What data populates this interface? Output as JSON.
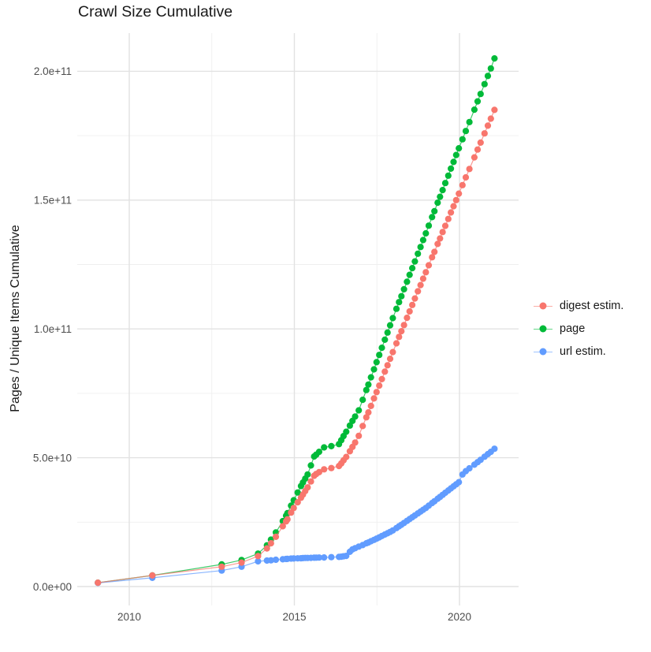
{
  "chart_data": {
    "type": "scatter",
    "title": "Crawl Size Cumulative",
    "xlabel": "",
    "ylabel": "Pages / Unique Items Cumulative",
    "x_unit": "calendar year (decimal)",
    "value_unit": "cumulative count, stored in billions (multiply by 1e9)",
    "xlim": [
      2008.5,
      2021.8
    ],
    "ylim_e9": [
      0,
      214
    ],
    "grid": "white background, light-gray major and minor gridlines, no axis lines",
    "legend_position": "right-center",
    "x_major_ticks": [
      {
        "value": 2010,
        "label": "2010"
      },
      {
        "value": 2015,
        "label": "2015"
      },
      {
        "value": 2020,
        "label": "2020"
      }
    ],
    "x_minor_ticks": [
      2012.5,
      2017.5
    ],
    "y_major_ticks": [
      {
        "value_e9": 0,
        "label": "0.0e+00"
      },
      {
        "value_e9": 50,
        "label": "5.0e+10"
      },
      {
        "value_e9": 100,
        "label": "1.0e+11"
      },
      {
        "value_e9": 150,
        "label": "1.5e+11"
      },
      {
        "value_e9": 200,
        "label": "2.0e+11"
      }
    ],
    "y_minor_ticks_e9": [
      25,
      75,
      125,
      175
    ],
    "x": [
      2009.05,
      2010.7,
      2012.8,
      2013.4,
      2013.9,
      2014.17,
      2014.29,
      2014.44,
      2014.65,
      2014.75,
      2014.79,
      2014.9,
      2014.98,
      2015.1,
      2015.2,
      2015.26,
      2015.33,
      2015.4,
      2015.5,
      2015.6,
      2015.66,
      2015.75,
      2015.9,
      2016.12,
      2016.35,
      2016.42,
      2016.49,
      2016.57,
      2016.68,
      2016.76,
      2016.84,
      2016.95,
      2017.07,
      2017.18,
      2017.24,
      2017.32,
      2017.41,
      2017.49,
      2017.57,
      2017.65,
      2017.74,
      2017.82,
      2017.9,
      2017.98,
      2018.09,
      2018.17,
      2018.24,
      2018.32,
      2018.41,
      2018.49,
      2018.57,
      2018.65,
      2018.74,
      2018.82,
      2018.9,
      2018.98,
      2019.07,
      2019.17,
      2019.24,
      2019.34,
      2019.41,
      2019.49,
      2019.57,
      2019.66,
      2019.74,
      2019.82,
      2019.9,
      2019.98,
      2020.09,
      2020.19,
      2020.3,
      2020.45,
      2020.55,
      2020.64,
      2020.76,
      2020.86,
      2020.95,
      2021.06
    ],
    "series": [
      {
        "name": "digest estim.",
        "color": "#F8766D",
        "values_e9": [
          1.5,
          4.3,
          7.7,
          9.3,
          11.8,
          14.8,
          16.8,
          19.3,
          23.4,
          25.3,
          26.1,
          28.7,
          30.5,
          32.7,
          34.5,
          35.7,
          37.1,
          38.5,
          40.8,
          43.0,
          43.7,
          44.4,
          45.5,
          46.0,
          46.8,
          47.8,
          49.0,
          50.3,
          52.5,
          54.2,
          55.9,
          58.5,
          62.3,
          65.7,
          67.6,
          70.1,
          73.0,
          75.5,
          78.0,
          80.5,
          83.4,
          85.9,
          88.4,
          91.0,
          94.4,
          96.9,
          99.1,
          101.5,
          104.3,
          106.8,
          109.3,
          111.8,
          114.6,
          117.0,
          119.5,
          122.0,
          124.7,
          127.8,
          129.9,
          133.0,
          135.1,
          137.6,
          140.0,
          142.7,
          145.2,
          147.6,
          150.0,
          152.5,
          155.8,
          158.8,
          162.1,
          166.6,
          169.6,
          172.3,
          175.9,
          178.9,
          181.6,
          185.0
        ]
      },
      {
        "name": "page",
        "color": "#00BA38",
        "values_e9": [
          1.5,
          4.3,
          8.6,
          10.3,
          12.8,
          16.0,
          18.2,
          21.0,
          25.4,
          27.5,
          28.5,
          31.4,
          33.5,
          36.5,
          39.0,
          40.4,
          41.9,
          43.5,
          47.0,
          50.5,
          51.2,
          52.3,
          54.0,
          54.5,
          55.3,
          56.8,
          58.4,
          60.1,
          62.5,
          64.3,
          66.0,
          68.4,
          72.5,
          76.3,
          78.4,
          81.2,
          84.3,
          87.1,
          89.9,
          92.7,
          95.8,
          98.6,
          101.4,
          104.2,
          107.8,
          110.4,
          112.7,
          115.4,
          118.3,
          121.0,
          123.6,
          126.2,
          129.2,
          131.8,
          134.5,
          137.1,
          140.1,
          143.4,
          145.7,
          149.0,
          151.3,
          153.9,
          156.6,
          159.5,
          162.2,
          164.8,
          167.5,
          170.1,
          173.6,
          176.8,
          180.3,
          185.1,
          188.3,
          191.2,
          195.0,
          198.2,
          201.1,
          205.0
        ]
      },
      {
        "name": "url estim.",
        "color": "#619CFF",
        "values_e9": [
          1.4,
          3.4,
          6.2,
          7.7,
          9.8,
          10.1,
          10.2,
          10.4,
          10.6,
          10.7,
          10.75,
          10.85,
          10.9,
          10.95,
          11.0,
          11.05,
          11.1,
          11.1,
          11.15,
          11.2,
          11.22,
          11.26,
          11.3,
          11.4,
          11.5,
          11.6,
          11.75,
          11.9,
          13.5,
          14.4,
          14.9,
          15.5,
          16.1,
          16.8,
          17.1,
          17.6,
          18.1,
          18.6,
          19.1,
          19.6,
          20.2,
          20.7,
          21.2,
          21.8,
          22.7,
          23.4,
          24.0,
          24.7,
          25.5,
          26.2,
          26.9,
          27.6,
          28.4,
          29.1,
          29.8,
          30.5,
          31.4,
          32.4,
          33.1,
          34.1,
          34.8,
          35.6,
          36.4,
          37.3,
          38.1,
          38.9,
          39.7,
          40.5,
          43.5,
          44.8,
          45.9,
          47.3,
          48.3,
          49.2,
          50.4,
          51.4,
          52.3,
          53.5
        ]
      }
    ],
    "draw_order": [
      1,
      2,
      0
    ]
  }
}
